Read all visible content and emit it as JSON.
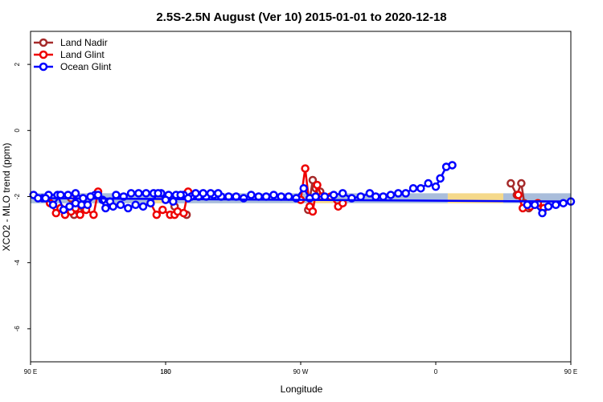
{
  "chart_data": {
    "type": "line",
    "title": "2.5S-2.5N August (Ver 10)   2015-01-01 to 2020-12-18",
    "xlabel": "Longitude",
    "ylabel": "XCO2 - MLO trend (ppm)",
    "xlim": [
      90,
      450
    ],
    "ylim": [
      -7,
      3
    ],
    "x_ticks": [
      {
        "value": 90,
        "label": "90 E"
      },
      {
        "value": 180,
        "label": "180"
      },
      {
        "value": 270,
        "label": "90 W"
      },
      {
        "value": 360,
        "label": "0"
      },
      {
        "value": 450,
        "label": "90 E"
      },
      {
        "value": 540,
        "label": "180"
      }
    ],
    "y_ticks": [
      {
        "value": 2,
        "label": "2"
      },
      {
        "value": 0,
        "label": "0"
      },
      {
        "value": -2,
        "label": "-2"
      },
      {
        "value": -4,
        "label": "-4"
      },
      {
        "value": -6,
        "label": "-6"
      }
    ],
    "legend_position": "top-left",
    "band_y": [
      -2.2,
      -1.9
    ],
    "bands": [
      {
        "x_start": 90,
        "x_end": 113,
        "color": "#a9bddb"
      },
      {
        "x_start": 113,
        "x_end": 135,
        "color": "#f5d98b"
      },
      {
        "x_start": 135,
        "x_end": 278,
        "color": "#a9bddb"
      },
      {
        "x_start": 278,
        "x_end": 292,
        "color": "#f5d98b"
      },
      {
        "x_start": 292,
        "x_end": 368,
        "color": "#a9bddb"
      },
      {
        "x_start": 368,
        "x_end": 405,
        "color": "#f5d98b"
      },
      {
        "x_start": 405,
        "x_end": 532,
        "color": "#a9bddb"
      },
      {
        "x_start": 532,
        "x_end": 545,
        "color": "#f5d98b"
      },
      {
        "x_start": 545,
        "x_end": 590,
        "color": "#a9bddb"
      }
    ],
    "series": [
      {
        "name": "Land Nadir",
        "color": "#a52a2a",
        "segments": [
          [
            {
              "x": 117,
              "y": -2.05
            },
            {
              "x": 119,
              "y": -2.55
            },
            {
              "x": 122,
              "y": -2.45
            }
          ],
          [
            {
              "x": 275,
              "y": -2.4
            },
            {
              "x": 278,
              "y": -1.5
            },
            {
              "x": 280,
              "y": -1.75
            },
            {
              "x": 283,
              "y": -1.85
            }
          ],
          [
            {
              "x": 410,
              "y": -1.6
            },
            {
              "x": 414,
              "y": -1.95
            },
            {
              "x": 417,
              "y": -1.6
            },
            {
              "x": 419,
              "y": -2.2
            },
            {
              "x": 422,
              "y": -2.35
            }
          ],
          [
            {
              "x": 543,
              "y": -2.05
            },
            {
              "x": 546,
              "y": -2.3
            },
            {
              "x": 554,
              "y": -2.55
            }
          ]
        ]
      },
      {
        "name": "Land Glint",
        "color": "#ee0000",
        "segments": [
          [
            {
              "x": 103,
              "y": -2.2
            },
            {
              "x": 107,
              "y": -2.5
            },
            {
              "x": 110,
              "y": -2.35
            },
            {
              "x": 113,
              "y": -2.55
            },
            {
              "x": 117,
              "y": -2.45
            },
            {
              "x": 120,
              "y": -2.35
            },
            {
              "x": 123,
              "y": -2.55
            },
            {
              "x": 127,
              "y": -2.4
            },
            {
              "x": 132,
              "y": -2.55
            },
            {
              "x": 135,
              "y": -1.85
            }
          ],
          [
            {
              "x": 270,
              "y": -2.1
            },
            {
              "x": 273,
              "y": -1.15
            },
            {
              "x": 276,
              "y": -2.3
            },
            {
              "x": 278,
              "y": -2.45
            },
            {
              "x": 281,
              "y": -1.65
            },
            {
              "x": 284,
              "y": -2.0
            },
            {
              "x": 290,
              "y": -2.0
            },
            {
              "x": 295,
              "y": -2.3
            },
            {
              "x": 298,
              "y": -2.2
            }
          ],
          [
            {
              "x": 415,
              "y": -1.95
            },
            {
              "x": 418,
              "y": -2.35
            },
            {
              "x": 423,
              "y": -2.3
            },
            {
              "x": 428,
              "y": -2.2
            },
            {
              "x": 432,
              "y": -2.35
            }
          ],
          [
            {
              "x": 530,
              "y": -2.2
            },
            {
              "x": 534,
              "y": -2.55
            },
            {
              "x": 538,
              "y": -2.4
            },
            {
              "x": 543,
              "y": -2.55
            },
            {
              "x": 546,
              "y": -2.55
            },
            {
              "x": 548,
              "y": -2.45
            },
            {
              "x": 552,
              "y": -2.5
            },
            {
              "x": 555,
              "y": -1.85
            }
          ]
        ]
      },
      {
        "name": "Ocean Glint",
        "color": "#0000ff",
        "segments": [
          [
            {
              "x": 92,
              "y": -1.95
            },
            {
              "x": 98,
              "y": -2.05
            },
            {
              "x": 102,
              "y": -1.95
            },
            {
              "x": 108,
              "y": -1.95
            },
            {
              "x": 112,
              "y": -2.4
            },
            {
              "x": 116,
              "y": -2.3
            },
            {
              "x": 120,
              "y": -2.2
            },
            {
              "x": 124,
              "y": -2.25
            },
            {
              "x": 128,
              "y": -2.25
            },
            {
              "x": 133,
              "y": -1.95
            },
            {
              "x": 138,
              "y": -2.1
            },
            {
              "x": 143,
              "y": -2.15
            },
            {
              "x": 147,
              "y": -1.95
            },
            {
              "x": 152,
              "y": -2.0
            },
            {
              "x": 157,
              "y": -1.9
            },
            {
              "x": 162,
              "y": -1.9
            },
            {
              "x": 167,
              "y": -1.9
            },
            {
              "x": 172,
              "y": -1.9
            },
            {
              "x": 177,
              "y": -1.9
            },
            {
              "x": 182,
              "y": -1.95
            },
            {
              "x": 187,
              "y": -1.95
            },
            {
              "x": 192,
              "y": -1.95
            },
            {
              "x": 197,
              "y": -2.0
            },
            {
              "x": 202,
              "y": -2.0
            },
            {
              "x": 207,
              "y": -2.0
            },
            {
              "x": 212,
              "y": -1.95
            },
            {
              "x": 217,
              "y": -2.0
            },
            {
              "x": 222,
              "y": -2.0
            },
            {
              "x": 227,
              "y": -2.0
            },
            {
              "x": 232,
              "y": -2.05
            },
            {
              "x": 237,
              "y": -1.95
            },
            {
              "x": 242,
              "y": -2.0
            },
            {
              "x": 247,
              "y": -2.0
            },
            {
              "x": 252,
              "y": -1.95
            },
            {
              "x": 257,
              "y": -2.0
            },
            {
              "x": 262,
              "y": -2.0
            },
            {
              "x": 267,
              "y": -2.05
            },
            {
              "x": 272,
              "y": -1.75
            },
            {
              "x": 276,
              "y": -2.05
            },
            {
              "x": 280,
              "y": -2.0
            },
            {
              "x": 286,
              "y": -2.0
            },
            {
              "x": 292,
              "y": -1.95
            },
            {
              "x": 298,
              "y": -1.9
            },
            {
              "x": 304,
              "y": -2.05
            },
            {
              "x": 310,
              "y": -2.0
            },
            {
              "x": 316,
              "y": -1.9
            },
            {
              "x": 320,
              "y": -2.0
            },
            {
              "x": 325,
              "y": -2.0
            },
            {
              "x": 330,
              "y": -1.95
            },
            {
              "x": 335,
              "y": -1.9
            },
            {
              "x": 340,
              "y": -1.9
            },
            {
              "x": 345,
              "y": -1.75
            },
            {
              "x": 350,
              "y": -1.75
            },
            {
              "x": 355,
              "y": -1.6
            },
            {
              "x": 360,
              "y": -1.7
            },
            {
              "x": 363,
              "y": -1.45
            },
            {
              "x": 367,
              "y": -1.1
            },
            {
              "x": 371,
              "y": -1.05
            }
          ],
          [
            {
              "x": 421,
              "y": -2.25
            },
            {
              "x": 426,
              "y": -2.25
            },
            {
              "x": 431,
              "y": -2.5
            },
            {
              "x": 435,
              "y": -2.3
            },
            {
              "x": 440,
              "y": -2.25
            },
            {
              "x": 445,
              "y": -2.2
            },
            {
              "x": 450,
              "y": -2.15
            },
            {
              "x": 455,
              "y": -2.05
            },
            {
              "x": 460,
              "y": -2.05
            },
            {
              "x": 465,
              "y": -2.25
            },
            {
              "x": 470,
              "y": -1.95
            },
            {
              "x": 475,
              "y": -1.95
            },
            {
              "x": 480,
              "y": -1.9
            },
            {
              "x": 485,
              "y": -2.05
            },
            {
              "x": 490,
              "y": -2.0
            },
            {
              "x": 495,
              "y": -1.95
            },
            {
              "x": 500,
              "y": -2.35
            },
            {
              "x": 505,
              "y": -2.3
            },
            {
              "x": 510,
              "y": -2.25
            },
            {
              "x": 515,
              "y": -2.35
            },
            {
              "x": 520,
              "y": -2.25
            },
            {
              "x": 525,
              "y": -2.3
            },
            {
              "x": 530,
              "y": -2.2
            },
            {
              "x": 535,
              "y": -1.9
            },
            {
              "x": 540,
              "y": -2.1
            },
            {
              "x": 545,
              "y": -2.15
            },
            {
              "x": 550,
              "y": -1.95
            },
            {
              "x": 555,
              "y": -2.05
            },
            {
              "x": 560,
              "y": -1.9
            },
            {
              "x": 565,
              "y": -1.9
            },
            {
              "x": 570,
              "y": -1.9
            },
            {
              "x": 575,
              "y": -1.9
            }
          ]
        ]
      }
    ]
  }
}
